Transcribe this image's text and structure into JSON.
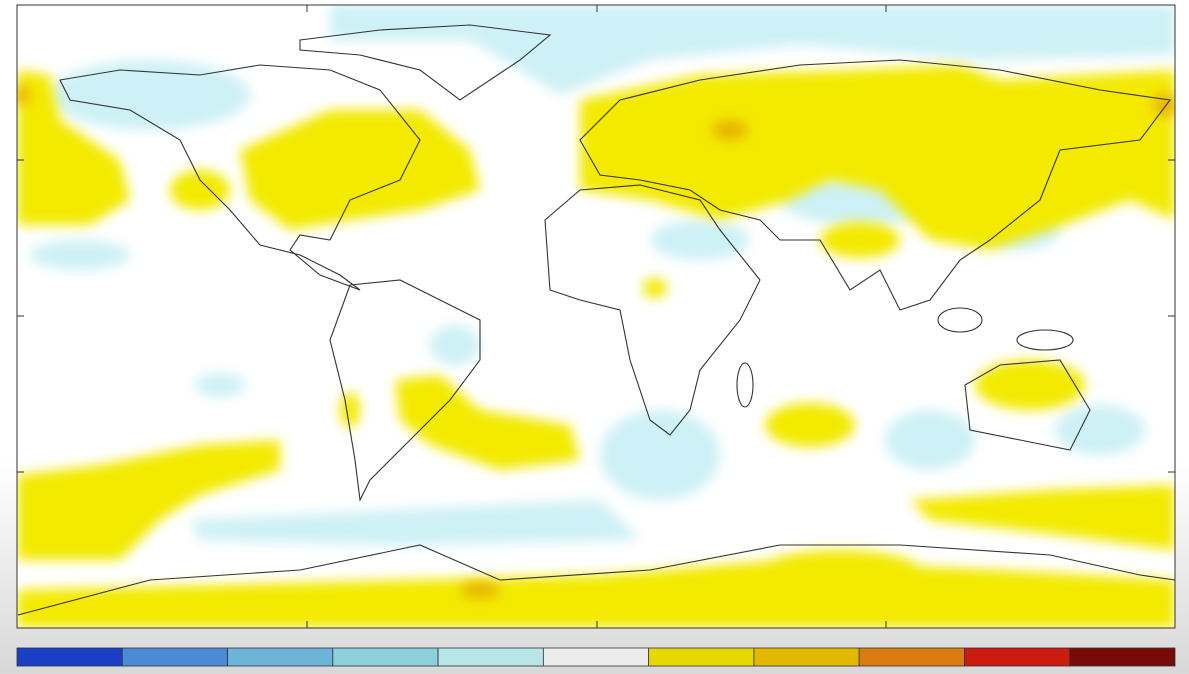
{
  "colorbar": {
    "colors": [
      "#1a3ec6",
      "#4a8bd6",
      "#6cb4d8",
      "#8dd0da",
      "#b8e5e8",
      "#ececec",
      "#e6d800",
      "#e2b800",
      "#da7c12",
      "#cc1c10",
      "#780a0a"
    ]
  }
}
